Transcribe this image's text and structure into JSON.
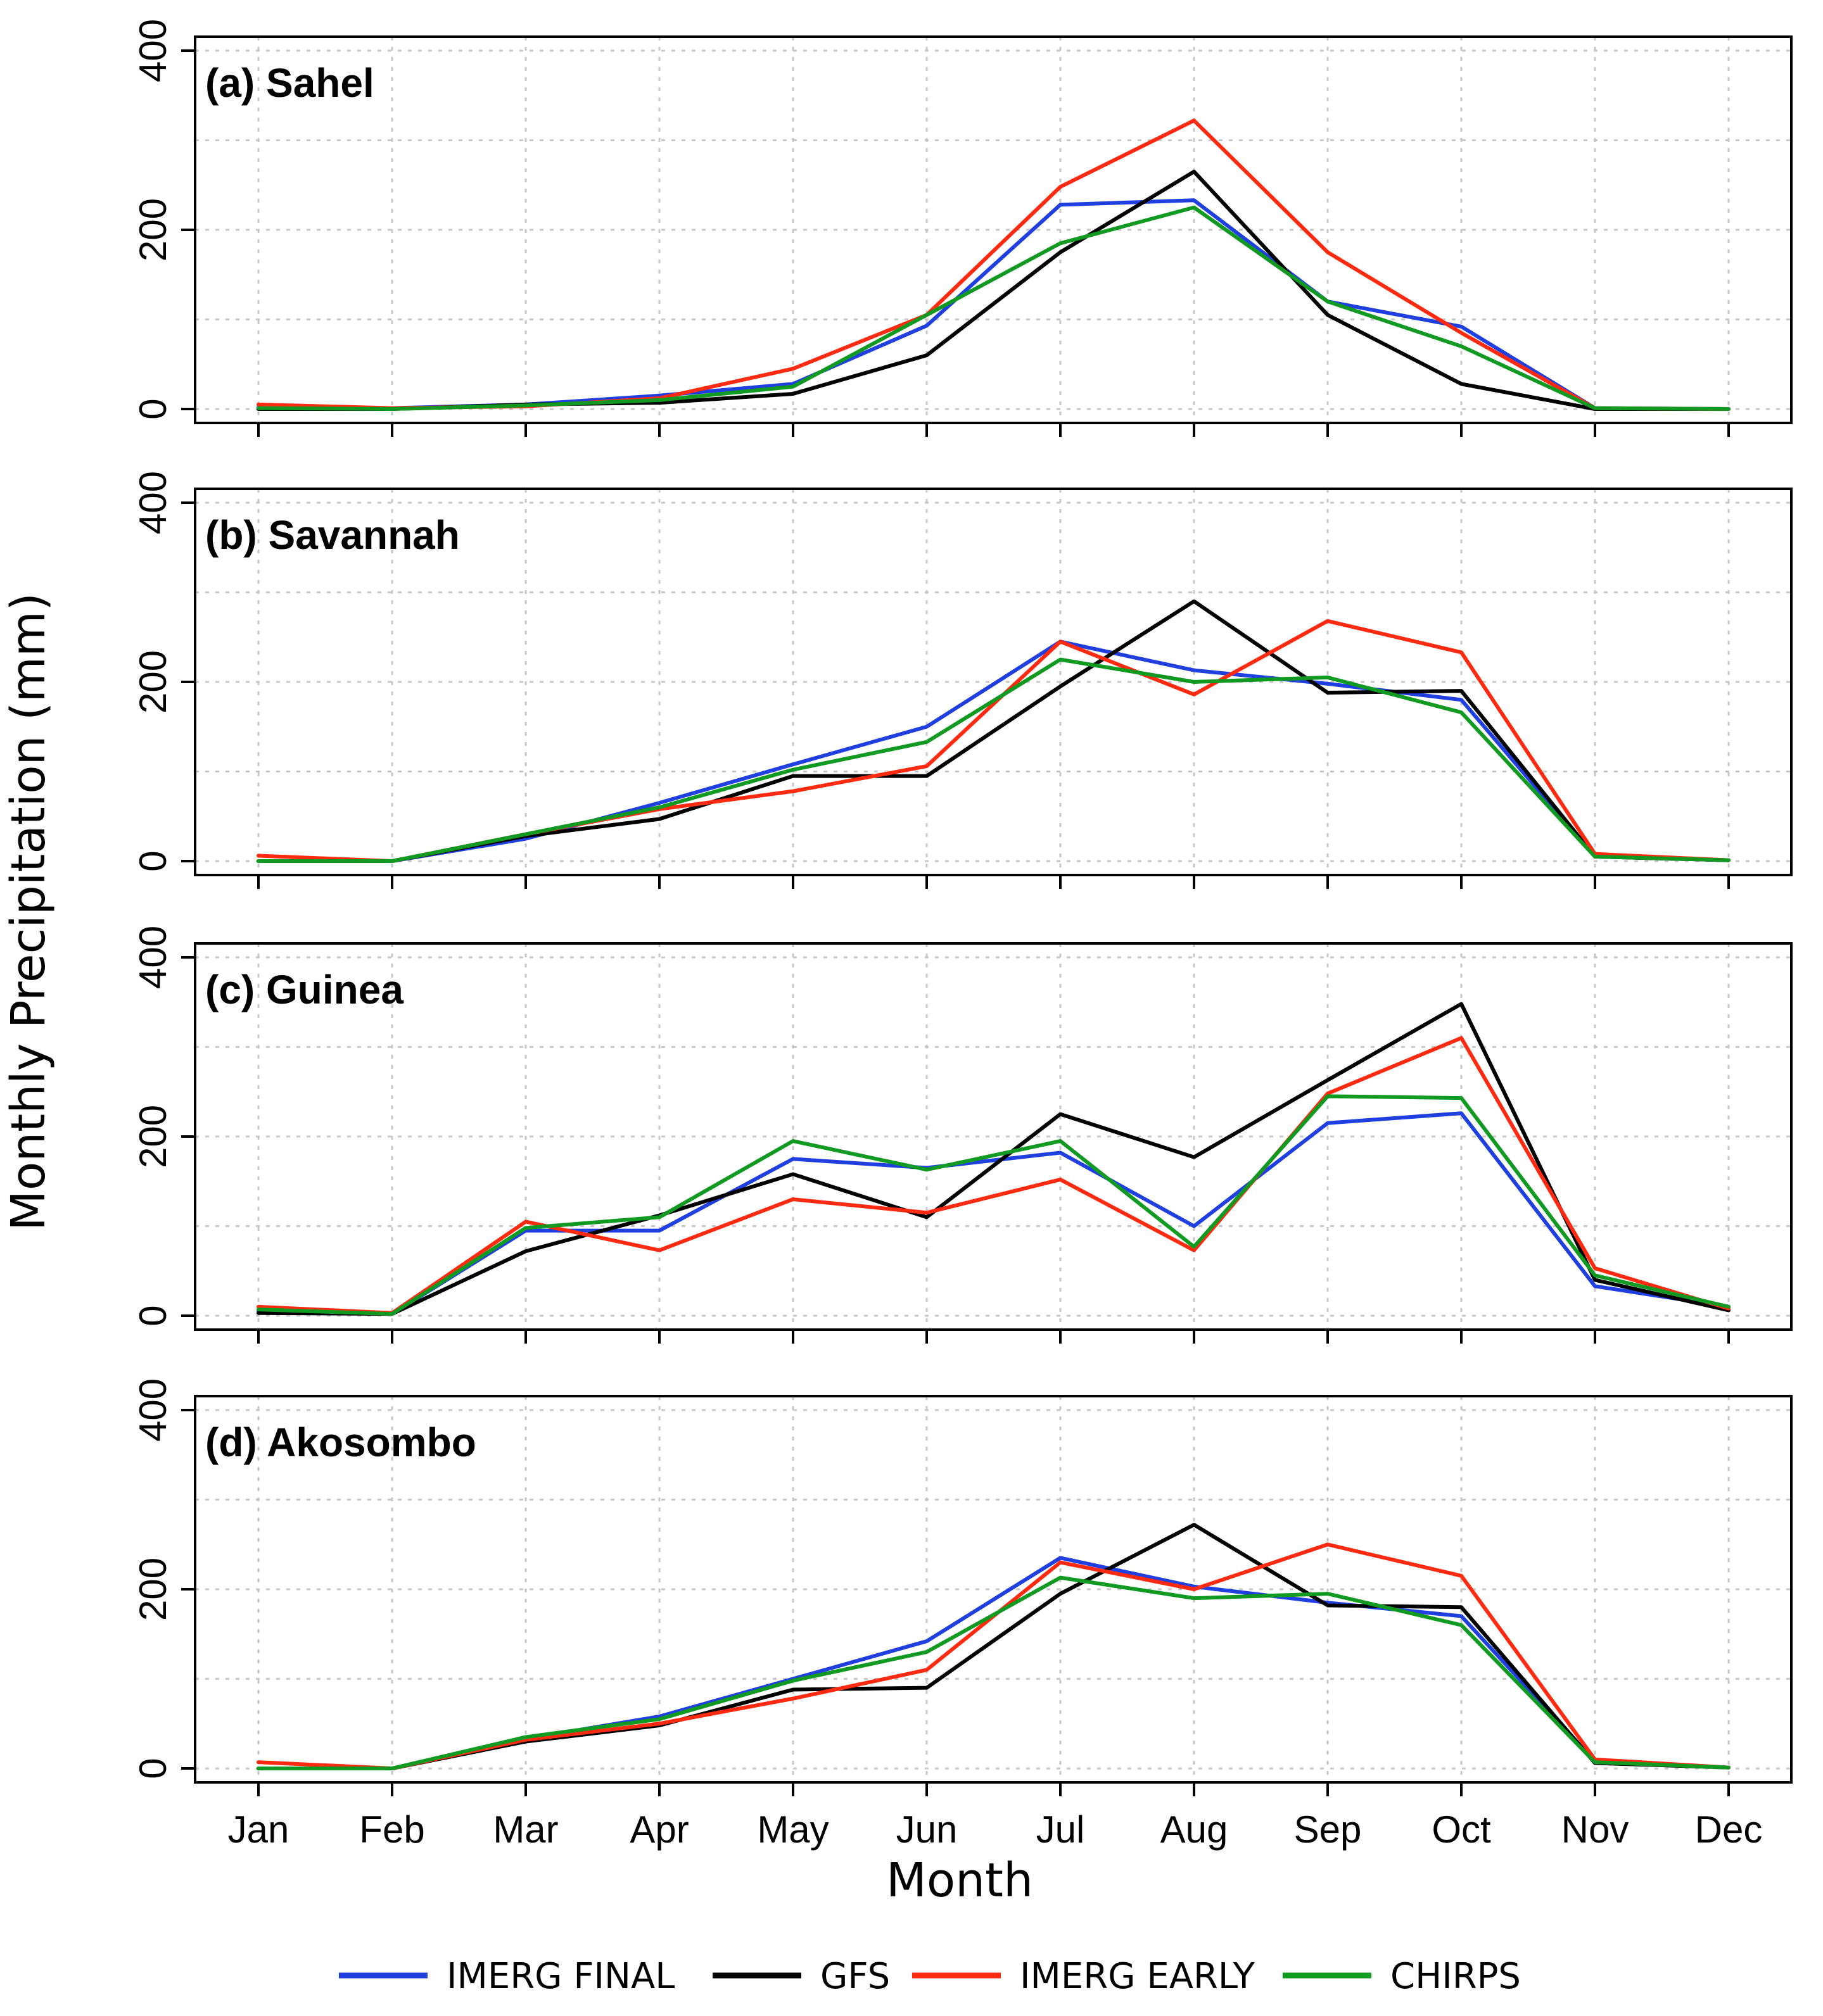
{
  "chart_data": {
    "type": "line",
    "ylabel": "Monthly Precipitation (mm)",
    "xlabel": "Month",
    "ylim": [
      0,
      400
    ],
    "yticks": [
      0,
      200,
      400
    ],
    "grid": true,
    "legend_position": "bottom",
    "categories": [
      "Jan",
      "Feb",
      "Mar",
      "Apr",
      "May",
      "Jun",
      "Jul",
      "Aug",
      "Sep",
      "Oct",
      "Nov",
      "Dec"
    ],
    "series_styles": [
      {
        "name": "IMERG FINAL",
        "color": "#1f3fe0"
      },
      {
        "name": "GFS",
        "color": "#000000"
      },
      {
        "name": "IMERG EARLY",
        "color": "#ff2a10"
      },
      {
        "name": "CHIRPS",
        "color": "#119a22"
      }
    ],
    "panels": [
      {
        "title": "(a) Sahel",
        "series": [
          {
            "name": "IMERG FINAL",
            "values": [
              2,
              1,
              5,
              15,
              28,
              93,
              228,
              233,
              120,
              92,
              1,
              0
            ]
          },
          {
            "name": "GFS",
            "values": [
              0,
              0,
              5,
              7,
              17,
              60,
              175,
              265,
              105,
              28,
              0,
              0
            ]
          },
          {
            "name": "IMERG EARLY",
            "values": [
              5,
              1,
              3,
              12,
              45,
              105,
              248,
              322,
              175,
              85,
              1,
              0
            ]
          },
          {
            "name": "CHIRPS",
            "values": [
              1,
              0,
              4,
              10,
              25,
              105,
              185,
              225,
              120,
              70,
              1,
              0
            ]
          }
        ]
      },
      {
        "title": "(b) Savannah",
        "series": [
          {
            "name": "IMERG FINAL",
            "values": [
              0,
              0,
              25,
              65,
              108,
              150,
              245,
              213,
              198,
              180,
              5,
              1
            ]
          },
          {
            "name": "GFS",
            "values": [
              0,
              0,
              28,
              47,
              95,
              95,
              195,
              290,
              188,
              190,
              5,
              1
            ]
          },
          {
            "name": "IMERG EARLY",
            "values": [
              6,
              0,
              30,
              58,
              78,
              106,
              245,
              186,
              268,
              233,
              8,
              1
            ]
          },
          {
            "name": "CHIRPS",
            "values": [
              0,
              0,
              30,
              60,
              102,
              133,
              225,
              200,
              205,
              166,
              5,
              1
            ]
          }
        ]
      },
      {
        "title": "(c) Guinea",
        "series": [
          {
            "name": "IMERG FINAL",
            "values": [
              5,
              2,
              95,
              95,
              175,
              165,
              182,
              100,
              215,
              226,
              33,
              10
            ]
          },
          {
            "name": "GFS",
            "values": [
              3,
              2,
              72,
              112,
              158,
              110,
              225,
              177,
              263,
              348,
              40,
              6
            ]
          },
          {
            "name": "IMERG EARLY",
            "values": [
              10,
              3,
              105,
              73,
              130,
              115,
              152,
              73,
              248,
              310,
              53,
              8
            ]
          },
          {
            "name": "CHIRPS",
            "values": [
              7,
              2,
              98,
              110,
              195,
              163,
              195,
              77,
              245,
              243,
              45,
              10
            ]
          }
        ]
      },
      {
        "title": "(d) Akosombo",
        "series": [
          {
            "name": "IMERG FINAL",
            "values": [
              0,
              0,
              33,
              58,
              100,
              142,
              235,
              203,
              185,
              170,
              8,
              1
            ]
          },
          {
            "name": "GFS",
            "values": [
              0,
              0,
              30,
              48,
              88,
              90,
              195,
              272,
              182,
              180,
              6,
              1
            ]
          },
          {
            "name": "IMERG EARLY",
            "values": [
              7,
              0,
              32,
              50,
              78,
              110,
              230,
              200,
              250,
              215,
              10,
              1
            ]
          },
          {
            "name": "CHIRPS",
            "values": [
              0,
              0,
              35,
              55,
              98,
              130,
              213,
              190,
              195,
              160,
              7,
              1
            ]
          }
        ]
      }
    ]
  }
}
